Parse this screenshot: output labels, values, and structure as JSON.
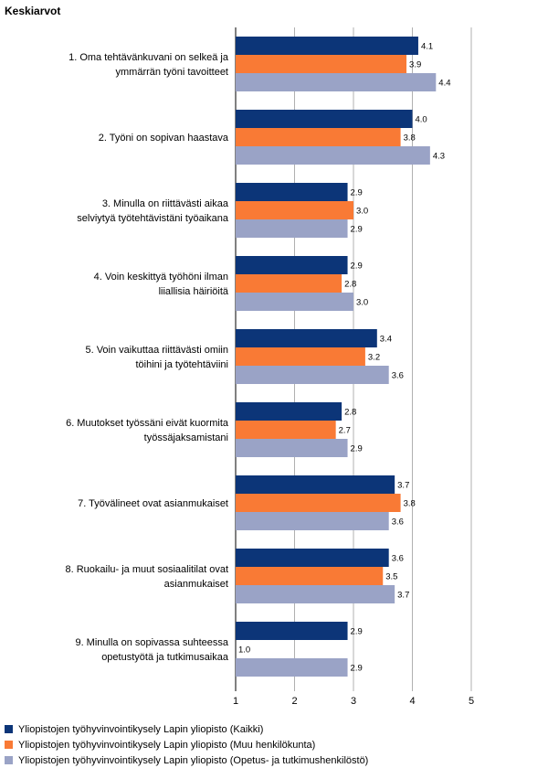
{
  "title": "Keskiarvot",
  "chart_data": {
    "type": "bar",
    "orientation": "horizontal",
    "title": "Keskiarvot",
    "xlim": [
      1,
      5
    ],
    "ticks": [
      "1",
      "2",
      "3",
      "4",
      "5"
    ],
    "grid": true,
    "legend_position": "bottom",
    "categories": [
      [
        "1. Oma tehtävänkuvani on selkeä ja",
        "ymmärrän työni tavoitteet"
      ],
      [
        "2. Työni on sopivan haastava"
      ],
      [
        "3. Minulla on riittävästi aikaa",
        "selviytyä työtehtävistäni työaikana"
      ],
      [
        "4. Voin keskittyä työhöni ilman",
        "liiallisia häiriöitä"
      ],
      [
        "5. Voin vaikuttaa riittävästi omiin",
        "töihini ja työtehtäviini"
      ],
      [
        "6. Muutokset työssäni eivät kuormita",
        "työssäjaksamistani"
      ],
      [
        "7. Työvälineet ovat asianmukaiset"
      ],
      [
        "8. Ruokailu- ja muut sosiaalitilat ovat",
        "asianmukaiset"
      ],
      [
        "9. Minulla on sopivassa suhteessa",
        "opetustyötä ja tutkimusaikaa"
      ]
    ],
    "series": [
      {
        "name": "Yliopistojen työhyvinvointikysely Lapin yliopisto (Kaikki)",
        "color": "#0c3578",
        "values": [
          4.1,
          4.0,
          2.9,
          2.9,
          3.4,
          2.8,
          3.7,
          3.6,
          2.9
        ],
        "labels": [
          "4.1",
          "4.0",
          "2.9",
          "2.9",
          "3.4",
          "2.8",
          "3.7",
          "3.6",
          "2.9"
        ]
      },
      {
        "name": "Yliopistojen työhyvinvointikysely Lapin yliopisto (Muu henkilökunta)",
        "color": "#f97a35",
        "values": [
          3.9,
          3.8,
          3.0,
          2.8,
          3.2,
          2.7,
          3.8,
          3.5,
          1.0
        ],
        "labels": [
          "3.9",
          "3.8",
          "3.0",
          "2.8",
          "3.2",
          "2.7",
          "3.8",
          "3.5",
          "1.0"
        ]
      },
      {
        "name": "Yliopistojen työhyvinvointikysely Lapin yliopisto (Opetus- ja tutkimushenkilöstö)",
        "color": "#9aa3c6",
        "values": [
          4.4,
          4.3,
          2.9,
          3.0,
          3.6,
          2.9,
          3.6,
          3.7,
          2.9
        ],
        "labels": [
          "4.4",
          "4.3",
          "2.9",
          "3.0",
          "3.6",
          "2.9",
          "3.6",
          "3.7",
          "2.9"
        ]
      }
    ]
  }
}
